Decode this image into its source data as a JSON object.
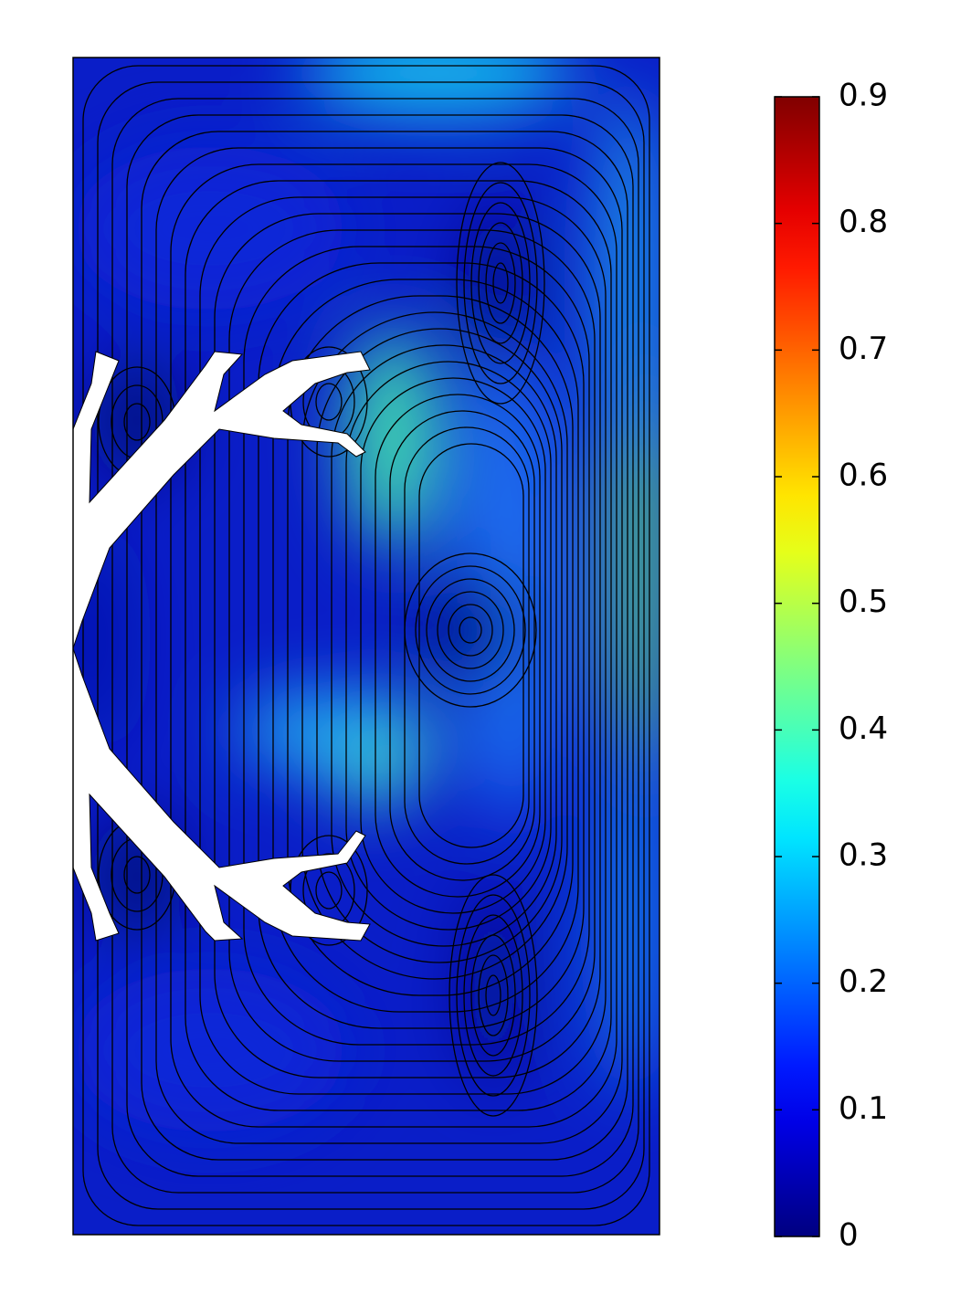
{
  "chart_data": {
    "type": "streamline",
    "colorbar": {
      "clim": [
        0,
        0.9
      ],
      "ticks": [
        0,
        0.1,
        0.2,
        0.3,
        0.4,
        0.5,
        0.6,
        0.7,
        0.8,
        0.9
      ],
      "colormap": "jet"
    }
  }
}
